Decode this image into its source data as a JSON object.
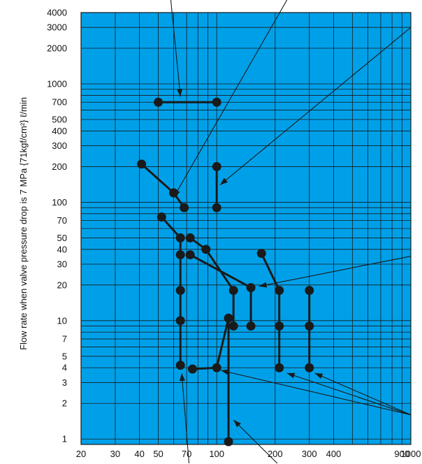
{
  "chart_data": {
    "type": "scatter",
    "title": "",
    "xlabel": "",
    "ylabel": "Flow rate when valve pressure drop is 7 MPa {71kgf/cm²} ℓ/min",
    "x_scale": "log",
    "y_scale": "log",
    "xlim": [
      20,
      1000
    ],
    "ylim": [
      0.9,
      4000
    ],
    "grid": true,
    "legend": "none",
    "x_ticks": [
      20,
      30,
      40,
      50,
      70,
      100,
      200,
      300,
      400,
      900,
      1000
    ],
    "y_ticks": [
      1,
      2,
      3,
      4,
      5,
      7,
      10,
      20,
      30,
      40,
      50,
      70,
      100,
      200,
      300,
      400,
      500,
      700,
      1000,
      2000,
      3000,
      4000
    ],
    "series": [
      {
        "values": [
          [
            50,
            700
          ],
          [
            100,
            700
          ]
        ]
      },
      {
        "values": [
          [
            41,
            210
          ],
          [
            60,
            120
          ],
          [
            68,
            90
          ]
        ]
      },
      {
        "values": [
          [
            100,
            200
          ],
          [
            100,
            90
          ]
        ]
      },
      {
        "values": [
          [
            52,
            75
          ],
          [
            65,
            50
          ],
          [
            65,
            36
          ],
          [
            65,
            18
          ],
          [
            65,
            10
          ],
          [
            65,
            4.2
          ]
        ]
      },
      {
        "values": [
          [
            73,
            50
          ],
          [
            88,
            40
          ],
          [
            122,
            18
          ],
          [
            122,
            9
          ]
        ]
      },
      {
        "values": [
          [
            73,
            36
          ],
          [
            150,
            19
          ],
          [
            150,
            9
          ]
        ]
      },
      {
        "values": [
          [
            75,
            3.9
          ],
          [
            100,
            4
          ],
          [
            115,
            10.5
          ],
          [
            115,
            0.95
          ]
        ]
      },
      {
        "values": [
          [
            170,
            37
          ],
          [
            210,
            18
          ],
          [
            210,
            9
          ],
          [
            210,
            4
          ]
        ]
      },
      {
        "values": [
          [
            300,
            18
          ],
          [
            300,
            9
          ],
          [
            300,
            4
          ]
        ]
      }
    ],
    "arrows": [
      {
        "tail": [
          58,
          7000
        ],
        "head": [
          65,
          780
        ]
      },
      {
        "tail": [
          230,
          7000
        ],
        "head": [
          60,
          110
        ]
      },
      {
        "tail": [
          1000,
          3000
        ],
        "head": [
          104,
          140
        ]
      },
      {
        "tail": [
          1000,
          35
        ],
        "head": [
          165,
          19.5
        ]
      },
      {
        "tail": [
          1000,
          1.6
        ],
        "head": [
          320,
          3.6
        ]
      },
      {
        "tail": [
          1000,
          1.6
        ],
        "head": [
          230,
          3.6
        ]
      },
      {
        "tail": [
          1000,
          1.6
        ],
        "head": [
          105,
          3.8
        ]
      },
      {
        "tail": [
          72,
          0.55
        ],
        "head": [
          66,
          3.6
        ]
      },
      {
        "tail": [
          205,
          0.55
        ],
        "head": [
          122,
          1.45
        ]
      }
    ]
  },
  "colors": {
    "plot_bg": "#00A0E9",
    "grid": "#1a1a1a",
    "line": "#1a1a1a",
    "marker": "#1a1a1a"
  }
}
